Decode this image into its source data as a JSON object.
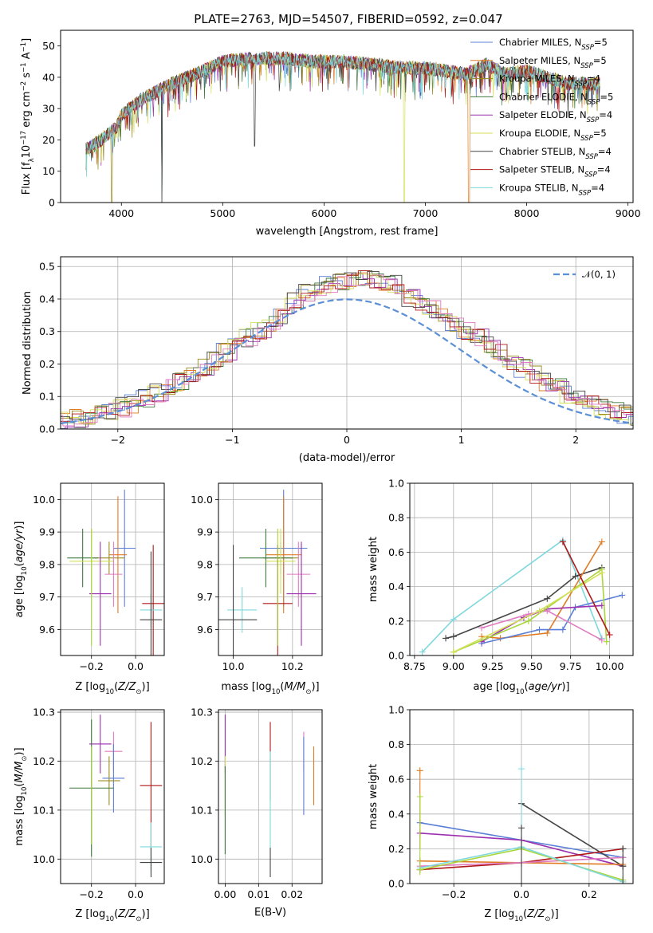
{
  "colors": {
    "Chabrier MILES": "#5b7fd6",
    "Salpeter MILES": "#e07b24",
    "Kroupa MILES": "#9a8a1e",
    "Chabrier ELODIE": "#3d7a3d",
    "Salpeter ELODIE": "#9b2fb0",
    "Kroupa ELODIE": "#d4e05a",
    "Chabrier STELIB": "#444444",
    "Salpeter STELIB": "#b01818",
    "Kroupa STELIB": "#7fd8dc",
    "pink": "#e07bc0",
    "lime": "#a8d63a",
    "normal": "#5b8fd6"
  },
  "chart_data": [
    {
      "type": "line",
      "title": "PLATE=2763, MJD=54507, FIBERID=0592, z=0.047",
      "xlabel": "wavelength [Angstrom, rest frame]",
      "ylabel": "Flux [f_λ10^-17 erg cm^-2 s^-1 A^-1]",
      "xlim": [
        3400,
        9050
      ],
      "ylim": [
        0,
        55
      ],
      "xticks": [
        4000,
        5000,
        6000,
        7000,
        8000,
        9000
      ],
      "yticks": [
        0,
        10,
        20,
        30,
        40,
        50
      ],
      "grid": false,
      "legend_position": "top-right",
      "series": [
        {
          "name": "Chabrier MILES",
          "nssp": "5"
        },
        {
          "name": "Salpeter MILES",
          "nssp": "5"
        },
        {
          "name": "Kroupa MILES",
          "nssp": "4"
        },
        {
          "name": "Chabrier ELODIE",
          "nssp": "5"
        },
        {
          "name": "Salpeter ELODIE",
          "nssp": "4"
        },
        {
          "name": "Kroupa ELODIE",
          "nssp": "5"
        },
        {
          "name": "Chabrier STELIB",
          "nssp": "4"
        },
        {
          "name": "Salpeter STELIB",
          "nssp": "4"
        },
        {
          "name": "Kroupa STELIB",
          "nssp": "4"
        }
      ],
      "continuum": {
        "x": [
          3650,
          3800,
          3950,
          4000,
          4200,
          4500,
          4800,
          5000,
          5300,
          5600,
          5900,
          6200,
          6500,
          6800,
          7000,
          7200,
          7400,
          7600,
          7800,
          8000,
          8200,
          8400,
          8600,
          8700
        ],
        "y": [
          17,
          20,
          24,
          28,
          33,
          38,
          42,
          45,
          46,
          46,
          45,
          45,
          44,
          43,
          43,
          42,
          41,
          44,
          41,
          42,
          40,
          38,
          38,
          38
        ]
      }
    },
    {
      "type": "bar",
      "xlabel": "(data-model)/error",
      "ylabel": "Normed distribution",
      "xlim": [
        -2.5,
        2.5
      ],
      "ylim": [
        0,
        0.53
      ],
      "xticks": [
        -2,
        -1,
        0,
        1,
        2
      ],
      "yticks": [
        0.0,
        0.1,
        0.2,
        0.3,
        0.4,
        0.5
      ],
      "grid": true,
      "legend_position": "top-right",
      "legend_label": "𝒩(0, 1)",
      "bin_width": 0.1
    },
    {
      "type": "scatter",
      "xlabel": "Z [log10(Z/Z⊙)]",
      "ylabel": "age  [log10(age/yr)]",
      "xlim": [
        -0.34,
        0.13
      ],
      "ylim": [
        9.52,
        10.05
      ],
      "xticks": [
        -0.2,
        0.0
      ],
      "yticks": [
        9.6,
        9.7,
        9.8,
        9.9,
        10.0
      ],
      "grid": true,
      "points": [
        {
          "color": "Chabrier MILES",
          "x": -0.05,
          "xerr": 0.05,
          "y": 9.85,
          "yerr": 0.18
        },
        {
          "color": "Salpeter MILES",
          "x": -0.08,
          "xerr": 0.04,
          "y": 9.83,
          "yerr": 0.18
        },
        {
          "color": "Kroupa MILES",
          "x": -0.12,
          "xerr": 0.07,
          "y": 9.82,
          "yerr": 0.05
        },
        {
          "color": "Chabrier ELODIE",
          "x": -0.24,
          "xerr": 0.07,
          "y": 9.82,
          "yerr": 0.09
        },
        {
          "color": "Kroupa ELODIE",
          "x": -0.2,
          "xerr": 0.1,
          "y": 9.81,
          "yerr": 0.1
        },
        {
          "color": "pink",
          "x": -0.1,
          "xerr": 0.04,
          "y": 9.77,
          "yerr": 0.1
        },
        {
          "color": "Salpeter ELODIE",
          "x": -0.16,
          "xerr": 0.05,
          "y": 9.71,
          "yerr": 0.16
        },
        {
          "color": "Salpeter STELIB",
          "x": 0.08,
          "xerr": 0.05,
          "y": 9.68,
          "yerr": 0.18
        },
        {
          "color": "Kroupa STELIB",
          "x": 0.07,
          "xerr": 0.05,
          "y": 9.66,
          "yerr": 0.05
        },
        {
          "color": "Chabrier STELIB",
          "x": 0.07,
          "xerr": 0.05,
          "y": 9.63,
          "yerr": 0.21
        },
        {
          "color": "lime",
          "x": -0.2,
          "xerr": 0.0,
          "y": 9.73,
          "yerr": 0.18
        }
      ]
    },
    {
      "type": "scatter",
      "xlabel": "mass [log10(M/M⊙)]",
      "ylabel": "",
      "xlim": [
        9.95,
        10.3
      ],
      "ylim": [
        9.52,
        10.05
      ],
      "xticks": [
        10.0,
        10.2
      ],
      "yticks": [
        9.6,
        9.7,
        9.8,
        9.9,
        10.0
      ],
      "grid": true,
      "points": [
        {
          "color": "Chabrier MILES",
          "x": 10.17,
          "xerr": 0.08,
          "y": 9.85,
          "yerr": 0.18
        },
        {
          "color": "Salpeter MILES",
          "x": 10.17,
          "xerr": 0.06,
          "y": 9.83,
          "yerr": 0.18
        },
        {
          "color": "Kroupa MILES",
          "x": 10.16,
          "xerr": 0.06,
          "y": 9.82,
          "yerr": 0.05
        },
        {
          "color": "Chabrier ELODIE",
          "x": 10.11,
          "xerr": 0.09,
          "y": 9.82,
          "yerr": 0.09
        },
        {
          "color": "Kroupa ELODIE",
          "x": 10.16,
          "xerr": 0.05,
          "y": 9.81,
          "yerr": 0.1
        },
        {
          "color": "pink",
          "x": 10.22,
          "xerr": 0.04,
          "y": 9.77,
          "yerr": 0.1
        },
        {
          "color": "Salpeter ELODIE",
          "x": 10.23,
          "xerr": 0.05,
          "y": 9.71,
          "yerr": 0.16
        },
        {
          "color": "Salpeter STELIB",
          "x": 10.15,
          "xerr": 0.05,
          "y": 9.68,
          "yerr": 0.18
        },
        {
          "color": "Kroupa STELIB",
          "x": 10.03,
          "xerr": 0.05,
          "y": 9.66,
          "yerr": 0.07
        },
        {
          "color": "Chabrier STELIB",
          "x": 10.0,
          "xerr": 0.08,
          "y": 9.63,
          "yerr": 0.23
        },
        {
          "color": "lime",
          "x": 10.15,
          "xerr": 0.0,
          "y": 9.73,
          "yerr": 0.18
        }
      ]
    },
    {
      "type": "line",
      "xlabel": "age  [log10(age/yr)]",
      "ylabel": "mass weight",
      "xlim": [
        8.72,
        10.15
      ],
      "ylim": [
        0,
        1.0
      ],
      "xticks": [
        8.75,
        9.0,
        9.25,
        9.5,
        9.75,
        10.0
      ],
      "yticks": [
        0.0,
        0.2,
        0.4,
        0.6,
        0.8,
        1.0
      ],
      "grid": true,
      "series": [
        {
          "color": "Kroupa STELIB",
          "x": [
            8.8,
            9.0,
            9.7,
            9.95
          ],
          "y": [
            0.02,
            0.21,
            0.67,
            0.1
          ]
        },
        {
          "color": "Chabrier STELIB",
          "x": [
            8.95,
            9.0,
            9.6,
            9.78,
            9.95
          ],
          "y": [
            0.1,
            0.11,
            0.33,
            0.46,
            0.51
          ]
        },
        {
          "color": "Salpeter MILES",
          "x": [
            9.18,
            9.3,
            9.6,
            9.95
          ],
          "y": [
            0.11,
            0.1,
            0.13,
            0.66
          ]
        },
        {
          "color": "Chabrier MILES",
          "x": [
            9.18,
            9.55,
            9.7,
            9.78,
            10.08
          ],
          "y": [
            0.07,
            0.15,
            0.15,
            0.28,
            0.35
          ]
        },
        {
          "color": "Salpeter ELODIE",
          "x": [
            9.18,
            9.45,
            9.6,
            9.95
          ],
          "y": [
            0.08,
            0.22,
            0.27,
            0.29
          ]
        },
        {
          "color": "pink",
          "x": [
            9.18,
            9.48,
            9.6,
            9.95
          ],
          "y": [
            0.16,
            0.24,
            0.26,
            0.09
          ]
        },
        {
          "color": "lime",
          "x": [
            9.0,
            9.48,
            9.95,
            9.98
          ],
          "y": [
            0.02,
            0.2,
            0.5,
            0.08
          ]
        },
        {
          "color": "Kroupa ELODIE",
          "x": [
            9.0,
            9.55,
            9.95
          ],
          "y": [
            0.02,
            0.26,
            0.48
          ]
        },
        {
          "color": "Salpeter STELIB",
          "x": [
            9.7,
            10.0
          ],
          "y": [
            0.66,
            0.12
          ]
        }
      ]
    },
    {
      "type": "scatter",
      "xlabel": "Z [log10(Z/Z⊙)]",
      "ylabel": "mass [log10(M/M⊙)]",
      "xlim": [
        -0.34,
        0.13
      ],
      "ylim": [
        9.95,
        10.305
      ],
      "xticks": [
        -0.2,
        0.0
      ],
      "yticks": [
        10.0,
        10.1,
        10.2,
        10.3
      ],
      "grid": true,
      "points": [
        {
          "color": "Salpeter ELODIE",
          "x": -0.16,
          "xerr": 0.05,
          "y": 10.235,
          "yerr": 0.06
        },
        {
          "color": "pink",
          "x": -0.1,
          "xerr": 0.04,
          "y": 10.22,
          "yerr": 0.04
        },
        {
          "color": "Chabrier MILES",
          "x": -0.1,
          "xerr": 0.05,
          "y": 10.165,
          "yerr": 0.07
        },
        {
          "color": "Kroupa MILES",
          "x": -0.12,
          "xerr": 0.05,
          "y": 10.16,
          "yerr": 0.05
        },
        {
          "color": "Chabrier ELODIE",
          "x": -0.2,
          "xerr": 0.1,
          "y": 10.145,
          "yerr": 0.14
        },
        {
          "color": "lime",
          "x": -0.2,
          "xerr": 0.0,
          "y": 10.13,
          "yerr": 0.1
        },
        {
          "color": "Salpeter STELIB",
          "x": 0.07,
          "xerr": 0.05,
          "y": 10.15,
          "yerr": 0.13
        },
        {
          "color": "Kroupa STELIB",
          "x": 0.07,
          "xerr": 0.05,
          "y": 10.025,
          "yerr": 0.05
        },
        {
          "color": "Chabrier STELIB",
          "x": 0.07,
          "xerr": 0.05,
          "y": 9.993,
          "yerr": 0.03
        }
      ]
    },
    {
      "type": "scatter",
      "xlabel": "E(B-V)",
      "ylabel": "",
      "xlim": [
        -0.002,
        0.029
      ],
      "ylim": [
        9.95,
        10.305
      ],
      "xticks": [
        0.0,
        0.01,
        0.02
      ],
      "yticks": [
        10.0,
        10.1,
        10.2,
        10.3
      ],
      "grid": true,
      "points": [
        {
          "color": "Salpeter ELODIE",
          "x": 0.0,
          "xerr": 0.0,
          "y": 10.235,
          "yerr": 0.06
        },
        {
          "color": "Kroupa ELODIE",
          "x": 0.0,
          "xerr": 0.0,
          "y": 10.15,
          "yerr": 0.06
        },
        {
          "color": "Chabrier ELODIE",
          "x": 0.0,
          "xerr": 0.0,
          "y": 10.1,
          "yerr": 0.09
        },
        {
          "color": "Salpeter STELIB",
          "x": 0.0135,
          "xerr": 0.0,
          "y": 10.2,
          "yerr": 0.08
        },
        {
          "color": "Kroupa STELIB",
          "x": 0.0135,
          "xerr": 0.0,
          "y": 10.12,
          "yerr": 0.1
        },
        {
          "color": "Chabrier STELIB",
          "x": 0.0135,
          "xerr": 0.0,
          "y": 9.993,
          "yerr": 0.03
        },
        {
          "color": "pink",
          "x": 0.0235,
          "xerr": 0.0,
          "y": 10.22,
          "yerr": 0.04
        },
        {
          "color": "Chabrier MILES",
          "x": 0.0235,
          "xerr": 0.0,
          "y": 10.17,
          "yerr": 0.08
        },
        {
          "color": "Salpeter MILES",
          "x": 0.0265,
          "xerr": 0.0,
          "y": 10.17,
          "yerr": 0.06
        }
      ]
    },
    {
      "type": "line",
      "xlabel": "Z [log10(Z/Z⊙)]",
      "ylabel": "mass weight",
      "xlim": [
        -0.33,
        0.33
      ],
      "ylim": [
        0,
        1.0
      ],
      "xticks": [
        -0.2,
        0.0,
        0.2
      ],
      "yticks": [
        0.0,
        0.2,
        0.4,
        0.6,
        0.8,
        1.0
      ],
      "grid": true,
      "series": [
        {
          "color": "Chabrier MILES",
          "x": [
            -0.3,
            0.0,
            0.3
          ],
          "y": [
            0.35,
            0.25,
            0.15
          ]
        },
        {
          "color": "Salpeter ELODIE",
          "x": [
            -0.3,
            0.0,
            0.3
          ],
          "y": [
            0.29,
            0.25,
            0.1
          ]
        },
        {
          "color": "Chabrier STELIB",
          "x": [
            0.0,
            0.3
          ],
          "y": [
            0.46,
            0.1
          ]
        },
        {
          "color": "Salpeter MILES",
          "x": [
            -0.3,
            0.3
          ],
          "y": [
            0.13,
            0.11
          ]
        },
        {
          "color": "Salpeter STELIB",
          "x": [
            -0.3,
            0.0,
            0.3
          ],
          "y": [
            0.08,
            0.12,
            0.2
          ]
        },
        {
          "color": "pink",
          "x": [
            -0.3,
            0.0,
            0.3
          ],
          "y": [
            0.1,
            0.12,
            0.15
          ]
        },
        {
          "color": "lime",
          "x": [
            -0.3,
            0.0,
            0.3
          ],
          "y": [
            0.08,
            0.2,
            0.02
          ]
        },
        {
          "color": "Kroupa STELIB",
          "x": [
            -0.3,
            0.0,
            0.3
          ],
          "y": [
            0.09,
            0.21,
            0.01
          ]
        }
      ],
      "errbars": [
        {
          "x": -0.3,
          "y": 0.65,
          "color": "Salpeter MILES"
        },
        {
          "x": -0.3,
          "y": 0.5,
          "color": "lime"
        },
        {
          "x": 0.0,
          "y": 0.66,
          "color": "Kroupa STELIB"
        },
        {
          "x": 0.0,
          "y": 0.32,
          "color": "Chabrier STELIB"
        },
        {
          "x": 0.3,
          "y": 0.2,
          "color": "Chabrier STELIB"
        }
      ]
    }
  ]
}
